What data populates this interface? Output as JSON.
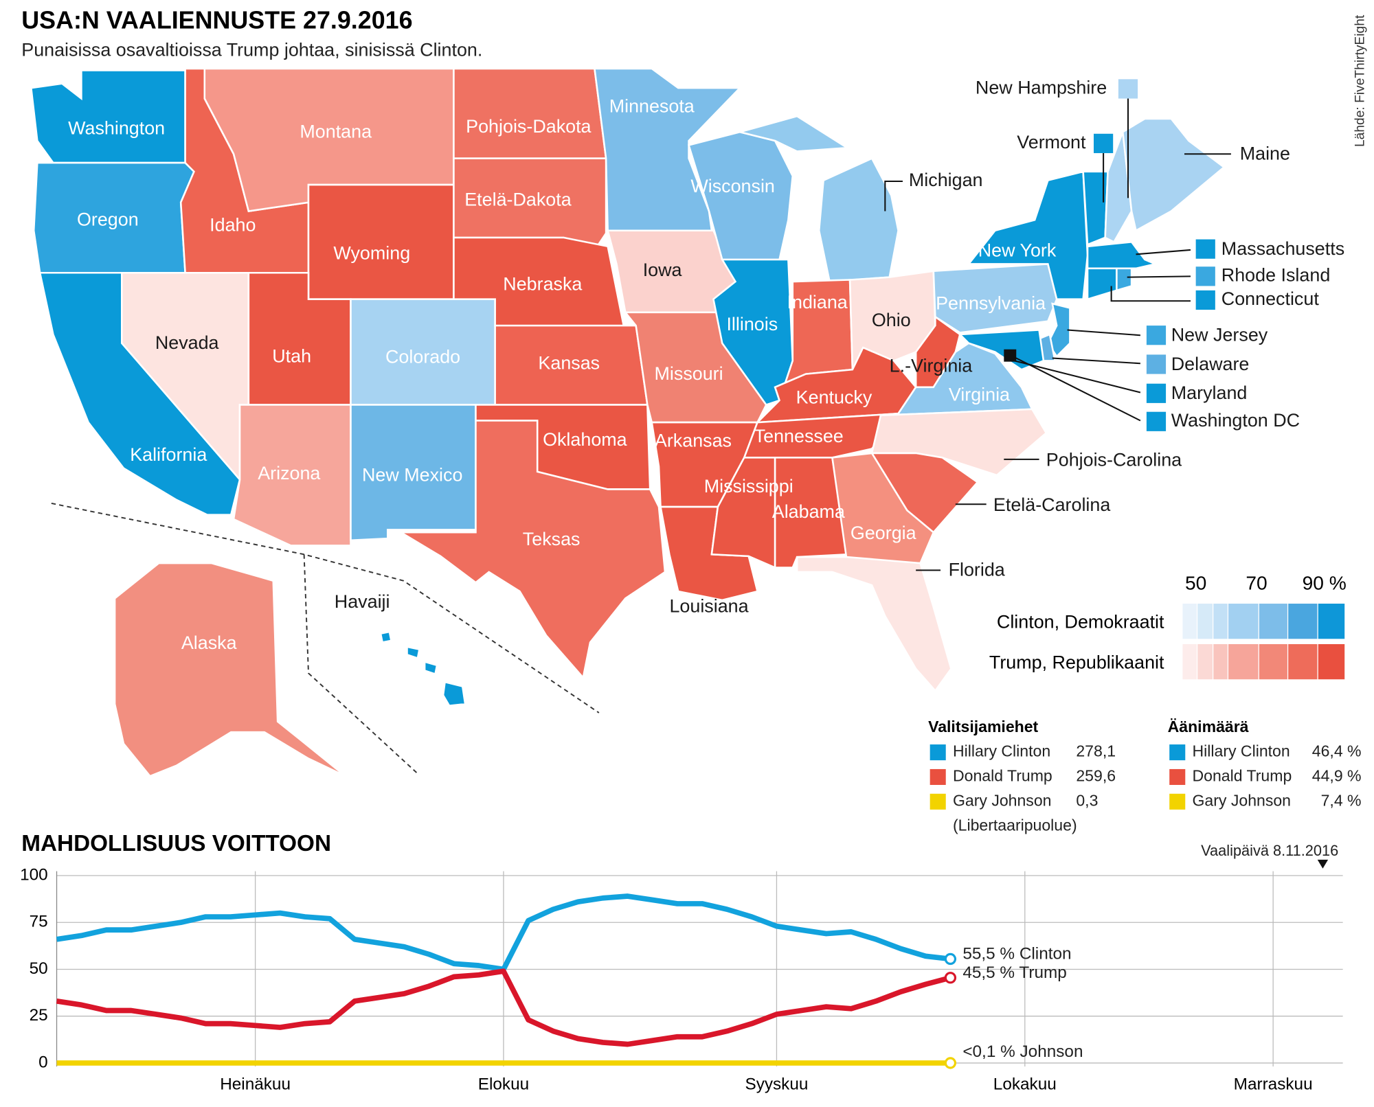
{
  "header": {
    "title": "USA:N VAALIENNUSTE 27.9.2016",
    "subtitle": "Punaisissa osavaltioissa Trump johtaa, sinisissä Clinton.",
    "source": "Lähde: FiveThirtyEight"
  },
  "map": {
    "states": [
      {
        "name": "Washington",
        "color": "#0a9ad8"
      },
      {
        "name": "Oregon",
        "color": "#2ea4de"
      },
      {
        "name": "Kalifornia",
        "color": "#0a9ad8"
      },
      {
        "name": "Nevada",
        "color": "#fde4e0"
      },
      {
        "name": "Idaho",
        "color": "#ee6452"
      },
      {
        "name": "Montana",
        "color": "#f5978a"
      },
      {
        "name": "Wyoming",
        "color": "#ea5644"
      },
      {
        "name": "Utah",
        "color": "#ea5644"
      },
      {
        "name": "Arizona",
        "color": "#f6a69b"
      },
      {
        "name": "Colorado",
        "color": "#a7d3f2"
      },
      {
        "name": "New Mexico",
        "color": "#6db7e6"
      },
      {
        "name": "Pohjois-Dakota",
        "color": "#ef7262"
      },
      {
        "name": "Etelä-Dakota",
        "color": "#ef7262"
      },
      {
        "name": "Nebraska",
        "color": "#ea5644"
      },
      {
        "name": "Kansas",
        "color": "#ee6352"
      },
      {
        "name": "Oklahoma",
        "color": "#ea5644"
      },
      {
        "name": "Teksas",
        "color": "#ef6e5e"
      },
      {
        "name": "Minnesota",
        "color": "#7cbde9"
      },
      {
        "name": "Iowa",
        "color": "#fbd2cd"
      },
      {
        "name": "Missouri",
        "color": "#f08272"
      },
      {
        "name": "Arkansas",
        "color": "#ea5644"
      },
      {
        "name": "Louisiana",
        "color": "#ea5644"
      },
      {
        "name": "Wisconsin",
        "color": "#7cbde9"
      },
      {
        "name": "Illinois",
        "color": "#0a9ad8"
      },
      {
        "name": "Michigan",
        "color": "#93caee"
      },
      {
        "name": "Indiana",
        "color": "#ee6755"
      },
      {
        "name": "Ohio",
        "color": "#fde2de"
      },
      {
        "name": "Kentucky",
        "color": "#ea5644"
      },
      {
        "name": "Tennessee",
        "color": "#ea5644"
      },
      {
        "name": "Mississippi",
        "color": "#ea5644"
      },
      {
        "name": "Alabama",
        "color": "#ea5644"
      },
      {
        "name": "L.-Virginia",
        "color": "#ea5644"
      },
      {
        "name": "Virginia",
        "color": "#8fc8ee"
      },
      {
        "name": "Pohjois-Carolina",
        "color": "#fde2de"
      },
      {
        "name": "Etelä-Carolina",
        "color": "#ee6858"
      },
      {
        "name": "Georgia",
        "color": "#f4907f"
      },
      {
        "name": "Florida",
        "color": "#fde6e3"
      },
      {
        "name": "Pennsylvania",
        "color": "#9ccdef"
      },
      {
        "name": "New York",
        "color": "#0a9ad8"
      },
      {
        "name": "Vermont",
        "color": "#0a9ad8"
      },
      {
        "name": "New Hampshire",
        "color": "#acd5f3"
      },
      {
        "name": "Maine",
        "color": "#a9d3f2"
      },
      {
        "name": "Massachusetts",
        "color": "#0a9ad8"
      },
      {
        "name": "Rhode Island",
        "color": "#3aa8e0"
      },
      {
        "name": "Connecticut",
        "color": "#0a9ad8"
      },
      {
        "name": "New Jersey",
        "color": "#3aa8e0"
      },
      {
        "name": "Delaware",
        "color": "#5db0e3"
      },
      {
        "name": "Maryland",
        "color": "#0a9ad8"
      },
      {
        "name": "Washington DC",
        "color": "#0a9ad8"
      },
      {
        "name": "Alaska",
        "color": "#f28f80"
      },
      {
        "name": "Havaiji",
        "color": "#0a9ad8"
      }
    ]
  },
  "legend": {
    "scale_labels": [
      "50",
      "70",
      "90 %"
    ],
    "rows": [
      {
        "label": "Clinton, Demokraatit",
        "colors": [
          "#e8f2fb",
          "#d6eaf8",
          "#c2e0f6",
          "#a2d0f1",
          "#7dbde9",
          "#4aa6df",
          "#0e97d8"
        ]
      },
      {
        "label": "Trump, Republikaanit",
        "colors": [
          "#fdeceb",
          "#fbd9d5",
          "#f9c4bd",
          "#f6a59a",
          "#f28878",
          "#ee6c5a",
          "#e9503f"
        ]
      }
    ]
  },
  "electors": {
    "title": "Valitsijamiehet",
    "rows": [
      {
        "name": "Hillary Clinton",
        "value": "278,1",
        "color": "#0a9ad8"
      },
      {
        "name": "Donald Trump",
        "value": "259,6",
        "color": "#e9503f"
      },
      {
        "name": "Gary Johnson",
        "value": "0,3",
        "color": "#f2d300"
      }
    ],
    "note": "(Libertaaripuolue)"
  },
  "votes": {
    "title": "Äänimäärä",
    "rows": [
      {
        "name": "Hillary Clinton",
        "value": "46,4 %",
        "color": "#0a9ad8"
      },
      {
        "name": "Donald Trump",
        "value": "44,9 %",
        "color": "#e9503f"
      },
      {
        "name": "Gary Johnson",
        "value": "7,4 %",
        "color": "#f2d300"
      }
    ]
  },
  "chart_data": {
    "type": "line",
    "title": "MAHDOLLISUUS VOITTOON",
    "annotation": "Vaalipäivä 8.11.2016",
    "categories": [
      null,
      null,
      null,
      null,
      null,
      null,
      null,
      null,
      "Heinäkuu",
      null,
      null,
      null,
      null,
      null,
      null,
      null,
      null,
      null,
      "Elokuu",
      null,
      null,
      null,
      null,
      null,
      null,
      null,
      null,
      null,
      null,
      "Syyskuu",
      null,
      null,
      null,
      null,
      null,
      null,
      null,
      null,
      null,
      "Lokakuu",
      null,
      null,
      null,
      null,
      null,
      null,
      null,
      null,
      null,
      "Marraskuu",
      null,
      null
    ],
    "ylim": [
      0,
      100
    ],
    "yticks": [
      0,
      25,
      50,
      75,
      100
    ],
    "grid": true,
    "series": [
      {
        "name": "55,5 % Clinton",
        "color": "#12a2dd",
        "values": [
          66,
          68,
          71,
          71,
          73,
          75,
          78,
          78,
          79,
          80,
          78,
          77,
          66,
          64,
          62,
          58,
          53,
          52,
          50,
          76,
          82,
          86,
          88,
          89,
          87,
          85,
          85,
          82,
          78,
          73,
          71,
          69,
          70,
          66,
          61,
          57,
          55.5,
          null,
          null,
          null,
          null,
          null,
          null,
          null,
          null,
          null,
          null,
          null,
          null,
          null,
          null,
          null
        ]
      },
      {
        "name": "45,5 % Trump",
        "color": "#d9162a",
        "values": [
          33,
          31,
          28,
          28,
          26,
          24,
          21,
          21,
          20,
          19,
          21,
          22,
          33,
          35,
          37,
          41,
          46,
          47,
          49,
          23,
          17,
          13,
          11,
          10,
          12,
          14,
          14,
          17,
          21,
          26,
          28,
          30,
          29,
          33,
          38,
          42,
          45.5,
          null,
          null,
          null,
          null,
          null,
          null,
          null,
          null,
          null,
          null,
          null,
          null,
          null,
          null,
          null
        ]
      },
      {
        "name": "<0,1 % Johnson",
        "color": "#f2d300",
        "values": [
          0,
          0,
          0,
          0,
          0,
          0,
          0,
          0,
          0,
          0,
          0,
          0,
          0,
          0,
          0,
          0,
          0,
          0,
          0,
          0,
          0,
          0,
          0,
          0,
          0,
          0,
          0,
          0,
          0,
          0,
          0,
          0,
          0,
          0,
          0,
          0,
          0,
          null,
          null,
          null,
          null,
          null,
          null,
          null,
          null,
          null,
          null,
          null,
          null,
          null,
          null,
          null
        ]
      }
    ]
  }
}
